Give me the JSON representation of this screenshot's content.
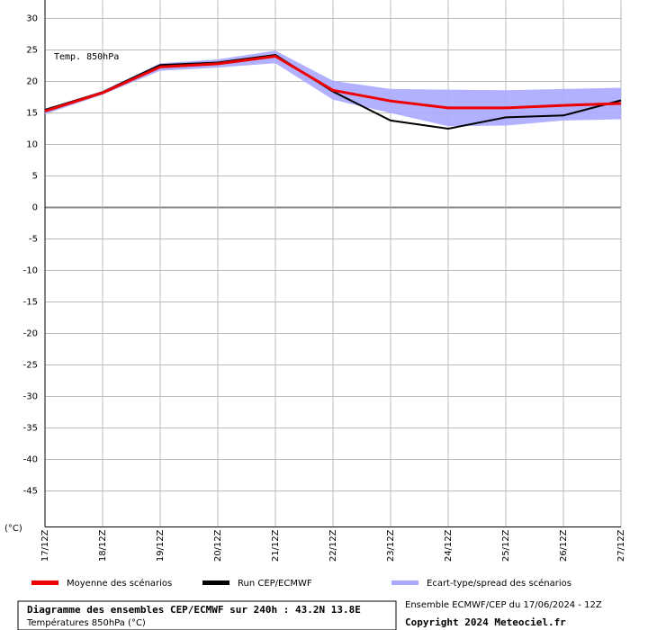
{
  "chart_data": {
    "type": "line",
    "annotation": "Temp. 850hPa",
    "y_unit": "(°C)",
    "categories": [
      "17/12Z",
      "18/12Z",
      "19/12Z",
      "20/12Z",
      "21/12Z",
      "22/12Z",
      "23/12Z",
      "24/12Z",
      "25/12Z",
      "26/12Z",
      "27/12Z"
    ],
    "series": [
      {
        "name": "Moyenne des scénarios",
        "color": "#ee0000",
        "values": [
          15.3,
          18.2,
          22.3,
          22.8,
          24.0,
          18.6,
          16.9,
          15.8,
          15.8,
          16.2,
          16.5
        ]
      },
      {
        "name": "Run CEP/ECMWF",
        "color": "#000000",
        "values": [
          15.5,
          18.3,
          22.6,
          23.0,
          24.2,
          18.4,
          13.8,
          12.5,
          14.3,
          14.6,
          17.0
        ]
      },
      {
        "name": "Ecart-type/spread des scénarios",
        "color": "#a8a8ff",
        "low": [
          14.8,
          17.9,
          21.7,
          22.2,
          22.9,
          17.1,
          15.0,
          12.9,
          13.0,
          13.8,
          14.0
        ],
        "high": [
          15.6,
          18.5,
          22.9,
          23.5,
          24.9,
          20.1,
          18.8,
          18.7,
          18.6,
          18.8,
          19.0
        ]
      }
    ],
    "ylim": [
      -50,
      30
    ],
    "yticks": [
      30,
      25,
      20,
      15,
      10,
      5,
      0,
      -5,
      -10,
      -15,
      -20,
      -25,
      -30,
      -35,
      -40,
      -45
    ],
    "grid": true,
    "footer": {
      "title": "Diagramme des ensembles CEP/ECMWF sur 240h : 43.2N 13.8E",
      "subtitle": "Températures 850hPa (°C)",
      "run": "Ensemble ECMWF/CEP du 17/06/2024 - 12Z",
      "copyright": "Copyright 2024 Meteociel.fr"
    }
  }
}
